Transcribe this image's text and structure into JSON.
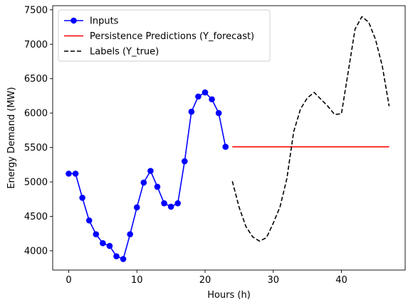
{
  "chart_data": {
    "type": "line",
    "xlabel": "Hours (h)",
    "ylabel": "Energy Demand (MW)",
    "xlim": [
      -2.35,
      49.35
    ],
    "ylim": [
      3720,
      7560
    ],
    "xticks": [
      0,
      10,
      20,
      30,
      40
    ],
    "yticks": [
      4000,
      4500,
      5000,
      5500,
      6000,
      6500,
      7000,
      7500
    ],
    "grid": false,
    "legend_position": "top-left",
    "series": [
      {
        "name": "Inputs",
        "color": "#0000ff",
        "style": "solid-with-circle-markers",
        "x": [
          0,
          1,
          2,
          3,
          4,
          5,
          6,
          7,
          8,
          9,
          10,
          11,
          12,
          13,
          14,
          15,
          16,
          17,
          18,
          19,
          20,
          21,
          22,
          23
        ],
        "y": [
          5120,
          5120,
          4770,
          4440,
          4240,
          4110,
          4070,
          3920,
          3880,
          4240,
          4630,
          4990,
          5160,
          4930,
          4690,
          4640,
          4690,
          5300,
          6020,
          6240,
          6300,
          6200,
          6000,
          5510
        ]
      },
      {
        "name": "Persistence Predictions (Y_forecast)",
        "color": "#ff0000",
        "style": "solid",
        "x": [
          24,
          25,
          26,
          27,
          28,
          29,
          30,
          31,
          32,
          33,
          34,
          35,
          36,
          37,
          38,
          39,
          40,
          41,
          42,
          43,
          44,
          45,
          46,
          47
        ],
        "y": [
          5510,
          5510,
          5510,
          5510,
          5510,
          5510,
          5510,
          5510,
          5510,
          5510,
          5510,
          5510,
          5510,
          5510,
          5510,
          5510,
          5510,
          5510,
          5510,
          5510,
          5510,
          5510,
          5510,
          5510
        ]
      },
      {
        "name": "Labels (Y_true)",
        "color": "#000000",
        "style": "dashed",
        "x": [
          24,
          25,
          26,
          27,
          28,
          29,
          30,
          31,
          32,
          33,
          34,
          35,
          36,
          37,
          38,
          39,
          40,
          41,
          42,
          43,
          44,
          45,
          46,
          47
        ],
        "y": [
          5010,
          4630,
          4350,
          4200,
          4140,
          4190,
          4400,
          4640,
          5050,
          5730,
          6060,
          6220,
          6300,
          6200,
          6100,
          5980,
          5990,
          6600,
          7220,
          7400,
          7320,
          7070,
          6680,
          6100
        ]
      }
    ]
  }
}
